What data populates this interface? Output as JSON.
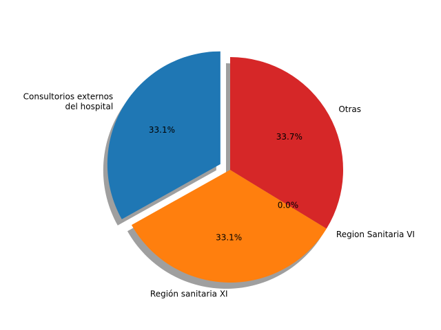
{
  "chart_data": {
    "type": "pie",
    "title": "",
    "start_angle_deg": 90,
    "direction": "counterclockwise",
    "shadow": true,
    "slices": [
      {
        "label_lines": [
          "Consultorios externos",
          "del hospital"
        ],
        "value": 33.1,
        "pct_label": "33.1%",
        "color": "#1f77b4",
        "explode": 0.1
      },
      {
        "label_lines": [
          "Región sanitaria XI"
        ],
        "value": 33.1,
        "pct_label": "33.1%",
        "color": "#ff7f0e",
        "explode": 0
      },
      {
        "label_lines": [
          "Region Sanitaria VI"
        ],
        "value": 0.0,
        "pct_label": "0.0%",
        "color": "#2ca02c",
        "explode": 0
      },
      {
        "label_lines": [
          "Otras"
        ],
        "value": 33.7,
        "pct_label": "33.7%",
        "color": "#d62728",
        "explode": 0
      }
    ]
  }
}
